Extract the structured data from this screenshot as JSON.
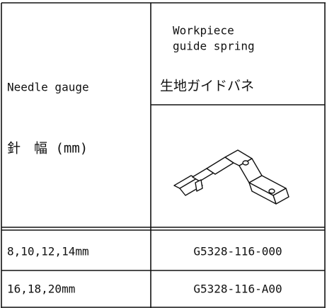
{
  "table": {
    "header": {
      "left": [
        "Needle gauge",
        "針　幅 (mm)"
      ],
      "right": [
        "Workpiece",
        "guide spring",
        "生地ガイドバネ"
      ]
    },
    "rows": [
      [
        "8,10,12,14mm",
        "G5328-116-000"
      ],
      [
        "16,18,20mm",
        "G5328-116-A00"
      ]
    ]
  }
}
